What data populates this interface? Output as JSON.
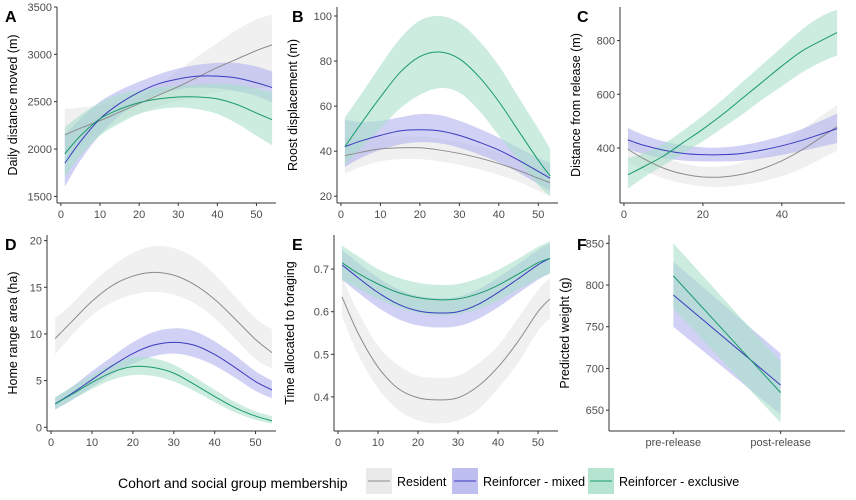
{
  "colors": {
    "resident": {
      "line": "#8c8c8c",
      "band": "#e6e6e6"
    },
    "mixed": {
      "line": "#3b3bbf",
      "band": "#b3b3ef"
    },
    "exclusive": {
      "line": "#1a9a6b",
      "band": "#a8dfc8"
    }
  },
  "legend": {
    "title": "Cohort and social group membership",
    "items": [
      {
        "key": "resident",
        "label": "Resident"
      },
      {
        "key": "mixed",
        "label": "Reinforcer - mixed"
      },
      {
        "key": "exclusive",
        "label": "Reinforcer - exclusive"
      }
    ]
  },
  "chart_data": [
    {
      "id": "A",
      "letter": "A",
      "type": "line",
      "ylabel": "Daily distance moved (m)",
      "xlim": [
        -1,
        55
      ],
      "ylim": [
        1430,
        3500
      ],
      "xticks": [
        0,
        10,
        20,
        30,
        40,
        50
      ],
      "yticks": [
        1500,
        2000,
        2500,
        3000,
        3500
      ],
      "series": [
        {
          "key": "resident",
          "x": [
            1,
            5,
            10,
            15,
            20,
            25,
            30,
            35,
            40,
            45,
            50,
            54
          ],
          "y": [
            2150,
            2220,
            2300,
            2390,
            2480,
            2570,
            2660,
            2760,
            2860,
            2950,
            3040,
            3100
          ],
          "lo": [
            1900,
            2030,
            2170,
            2290,
            2380,
            2450,
            2510,
            2560,
            2600,
            2620,
            2640,
            2650
          ],
          "hi": [
            2420,
            2440,
            2460,
            2490,
            2550,
            2680,
            2830,
            2980,
            3120,
            3260,
            3370,
            3420
          ]
        },
        {
          "key": "mixed",
          "x": [
            1,
            5,
            10,
            15,
            20,
            25,
            30,
            35,
            40,
            45,
            50,
            54
          ],
          "y": [
            1850,
            2080,
            2320,
            2480,
            2600,
            2690,
            2740,
            2770,
            2770,
            2750,
            2700,
            2650
          ],
          "lo": [
            1600,
            1880,
            2150,
            2350,
            2490,
            2580,
            2630,
            2650,
            2640,
            2610,
            2560,
            2490
          ],
          "hi": [
            2150,
            2320,
            2500,
            2620,
            2710,
            2790,
            2850,
            2890,
            2910,
            2910,
            2870,
            2820
          ]
        },
        {
          "key": "exclusive",
          "x": [
            1,
            5,
            10,
            15,
            20,
            25,
            30,
            35,
            40,
            45,
            50,
            54
          ],
          "y": [
            1950,
            2140,
            2320,
            2420,
            2490,
            2530,
            2550,
            2550,
            2530,
            2470,
            2380,
            2310
          ],
          "lo": [
            1700,
            1930,
            2140,
            2270,
            2370,
            2420,
            2440,
            2420,
            2370,
            2270,
            2140,
            2040
          ],
          "hi": [
            2230,
            2360,
            2490,
            2580,
            2620,
            2650,
            2670,
            2680,
            2690,
            2680,
            2640,
            2600
          ]
        }
      ]
    },
    {
      "id": "B",
      "letter": "B",
      "type": "line",
      "ylabel": "Roost displacement (m)",
      "xlim": [
        -1,
        55
      ],
      "ylim": [
        17,
        104
      ],
      "xticks": [
        0,
        10,
        20,
        30,
        40,
        50
      ],
      "yticks": [
        20,
        40,
        60,
        80,
        100
      ],
      "series": [
        {
          "key": "resident",
          "x": [
            1,
            5,
            10,
            15,
            20,
            25,
            30,
            35,
            40,
            45,
            50,
            53
          ],
          "y": [
            38,
            39.5,
            41,
            41.5,
            41.5,
            40.5,
            39,
            37,
            34.5,
            31.5,
            28,
            26
          ],
          "lo": [
            30,
            33,
            35.5,
            36.5,
            36.5,
            35.5,
            34,
            32,
            29.5,
            26.5,
            22.5,
            20
          ],
          "hi": [
            46,
            46,
            46.5,
            46.5,
            46.5,
            45.5,
            44,
            42,
            39.5,
            36.5,
            33.5,
            32
          ]
        },
        {
          "key": "mixed",
          "x": [
            1,
            5,
            10,
            15,
            20,
            25,
            30,
            35,
            40,
            45,
            50,
            53
          ],
          "y": [
            42,
            44.5,
            47,
            49,
            49.5,
            49,
            47,
            44,
            40.5,
            36,
            31,
            28
          ],
          "lo": [
            33,
            37,
            40.5,
            43,
            44,
            43.5,
            41.5,
            38.5,
            35,
            30.5,
            25.5,
            22.5
          ],
          "hi": [
            54,
            53,
            53.5,
            55,
            56.5,
            56,
            53.5,
            50,
            46,
            41.5,
            37,
            35
          ]
        },
        {
          "key": "exclusive",
          "x": [
            1,
            5,
            10,
            15,
            20,
            25,
            30,
            35,
            40,
            45,
            50,
            53
          ],
          "y": [
            42,
            52,
            64,
            75,
            82,
            84,
            81,
            73,
            62,
            49,
            36,
            29
          ],
          "lo": [
            34,
            41,
            50,
            59,
            65,
            68,
            66,
            58,
            47,
            36,
            25,
            20
          ],
          "hi": [
            55,
            65,
            78,
            90,
            98,
            100,
            97,
            89,
            78,
            64,
            50,
            41
          ]
        }
      ]
    },
    {
      "id": "C",
      "letter": "C",
      "type": "line",
      "ylabel": "Distance from release (m)",
      "xlim": [
        -1,
        56
      ],
      "ylim": [
        195,
        925
      ],
      "xticks": [
        0,
        20,
        40
      ],
      "yticks": [
        400,
        600,
        800
      ],
      "series": [
        {
          "key": "resident",
          "x": [
            1,
            5,
            10,
            15,
            20,
            25,
            30,
            35,
            40,
            45,
            50,
            54
          ],
          "y": [
            395,
            360,
            325,
            303,
            292,
            292,
            302,
            322,
            352,
            392,
            440,
            480
          ],
          "lo": [
            350,
            318,
            287,
            268,
            257,
            255,
            262,
            275,
            295,
            323,
            360,
            390
          ],
          "hi": [
            445,
            405,
            368,
            342,
            330,
            332,
            346,
            372,
            410,
            465,
            520,
            560
          ]
        },
        {
          "key": "mixed",
          "x": [
            1,
            5,
            10,
            15,
            20,
            25,
            30,
            35,
            40,
            45,
            50,
            54
          ],
          "y": [
            430,
            410,
            392,
            380,
            375,
            375,
            380,
            392,
            408,
            428,
            452,
            472
          ],
          "lo": [
            395,
            378,
            362,
            353,
            350,
            350,
            352,
            362,
            374,
            389,
            405,
            418
          ],
          "hi": [
            475,
            448,
            425,
            410,
            402,
            402,
            410,
            425,
            445,
            470,
            502,
            528
          ]
        },
        {
          "key": "exclusive",
          "x": [
            1,
            5,
            10,
            15,
            20,
            25,
            30,
            35,
            40,
            45,
            50,
            54
          ],
          "y": [
            300,
            330,
            370,
            420,
            470,
            525,
            585,
            645,
            705,
            760,
            800,
            830
          ],
          "lo": [
            248,
            290,
            335,
            380,
            425,
            475,
            525,
            580,
            630,
            680,
            720,
            745
          ],
          "hi": [
            362,
            380,
            415,
            465,
            520,
            580,
            645,
            710,
            775,
            840,
            890,
            915
          ]
        }
      ]
    },
    {
      "id": "D",
      "letter": "D",
      "type": "line",
      "ylabel": "Home range area (ha)",
      "xlim": [
        -1,
        55
      ],
      "ylim": [
        -0.4,
        20.6
      ],
      "xticks": [
        0,
        10,
        20,
        30,
        40,
        50
      ],
      "yticks": [
        0,
        5,
        10,
        15,
        20
      ],
      "series": [
        {
          "key": "resident",
          "x": [
            1,
            5,
            10,
            15,
            20,
            25,
            30,
            35,
            40,
            45,
            50,
            54
          ],
          "y": [
            9.5,
            11.3,
            13.5,
            15.2,
            16.2,
            16.6,
            16.3,
            15.3,
            13.7,
            11.6,
            9.4,
            8
          ],
          "lo": [
            7.8,
            9.8,
            12,
            13.4,
            14.2,
            14.5,
            14.2,
            13.3,
            11.7,
            9.5,
            7.3,
            6.3
          ],
          "hi": [
            11.7,
            13.2,
            15.4,
            17.3,
            18.7,
            19.4,
            19.2,
            18.2,
            16.4,
            14,
            11.7,
            10.5
          ]
        },
        {
          "key": "mixed",
          "x": [
            1,
            5,
            10,
            15,
            20,
            25,
            30,
            35,
            40,
            45,
            50,
            54
          ],
          "y": [
            2.5,
            3.6,
            5.1,
            6.6,
            7.9,
            8.8,
            9.1,
            8.8,
            7.8,
            6.4,
            4.9,
            4
          ],
          "lo": [
            1.9,
            2.9,
            4.3,
            5.7,
            6.8,
            7.6,
            7.9,
            7.5,
            6.6,
            5.3,
            3.9,
            3.1
          ],
          "hi": [
            3.2,
            4.3,
            6,
            7.6,
            9.1,
            10.2,
            10.6,
            10.3,
            9.2,
            7.7,
            6,
            5
          ]
        },
        {
          "key": "exclusive",
          "x": [
            1,
            5,
            10,
            15,
            20,
            25,
            30,
            35,
            40,
            45,
            50,
            54
          ],
          "y": [
            2.5,
            3.5,
            4.8,
            5.9,
            6.5,
            6.4,
            5.8,
            4.6,
            3.3,
            2.1,
            1.2,
            0.7
          ],
          "lo": [
            1.9,
            2.9,
            4.1,
            5.1,
            5.6,
            5.5,
            4.9,
            3.9,
            2.7,
            1.6,
            0.8,
            0.4
          ],
          "hi": [
            3.2,
            4.3,
            5.6,
            6.8,
            7.5,
            7.4,
            6.7,
            5.4,
            4,
            2.7,
            1.7,
            1.2
          ]
        }
      ]
    },
    {
      "id": "E",
      "letter": "E",
      "type": "line",
      "ylabel": "Time allocated to foraging",
      "xlim": [
        -1,
        55
      ],
      "ylim": [
        0.32,
        0.78
      ],
      "xticks": [
        0,
        10,
        20,
        30,
        40,
        50
      ],
      "yticks": [
        0.4,
        0.5,
        0.6,
        0.7
      ],
      "series": [
        {
          "key": "resident",
          "x": [
            1,
            5,
            10,
            15,
            20,
            25,
            30,
            35,
            40,
            45,
            50,
            53
          ],
          "y": [
            0.635,
            0.55,
            0.47,
            0.42,
            0.398,
            0.393,
            0.398,
            0.425,
            0.47,
            0.53,
            0.6,
            0.63
          ],
          "lo": [
            0.59,
            0.5,
            0.42,
            0.37,
            0.345,
            0.338,
            0.345,
            0.37,
            0.42,
            0.48,
            0.555,
            0.585
          ],
          "hi": [
            0.68,
            0.6,
            0.52,
            0.475,
            0.45,
            0.445,
            0.45,
            0.478,
            0.52,
            0.585,
            0.65,
            0.68
          ]
        },
        {
          "key": "mixed",
          "x": [
            1,
            5,
            10,
            15,
            20,
            25,
            30,
            35,
            40,
            45,
            50,
            53
          ],
          "y": [
            0.71,
            0.68,
            0.645,
            0.618,
            0.602,
            0.597,
            0.6,
            0.617,
            0.645,
            0.677,
            0.71,
            0.725
          ],
          "lo": [
            0.675,
            0.645,
            0.61,
            0.583,
            0.568,
            0.563,
            0.566,
            0.583,
            0.61,
            0.643,
            0.675,
            0.69
          ],
          "hi": [
            0.745,
            0.715,
            0.68,
            0.653,
            0.637,
            0.632,
            0.635,
            0.652,
            0.68,
            0.712,
            0.745,
            0.76
          ]
        },
        {
          "key": "exclusive",
          "x": [
            1,
            5,
            10,
            15,
            20,
            25,
            30,
            35,
            40,
            45,
            50,
            53
          ],
          "y": [
            0.715,
            0.69,
            0.665,
            0.645,
            0.633,
            0.628,
            0.63,
            0.642,
            0.662,
            0.688,
            0.715,
            0.725
          ],
          "lo": [
            0.675,
            0.655,
            0.63,
            0.61,
            0.597,
            0.592,
            0.594,
            0.606,
            0.626,
            0.652,
            0.678,
            0.69
          ],
          "hi": [
            0.755,
            0.73,
            0.7,
            0.68,
            0.668,
            0.663,
            0.665,
            0.678,
            0.698,
            0.724,
            0.752,
            0.765
          ]
        }
      ]
    },
    {
      "id": "F",
      "letter": "F",
      "type": "line",
      "ylabel": "Predicted weight (g)",
      "categories": [
        "pre-release",
        "post-release"
      ],
      "xlim": [
        0.4,
        2.6
      ],
      "ylim": [
        625,
        860
      ],
      "yticks": [
        650,
        700,
        750,
        800,
        850
      ],
      "series": [
        {
          "key": "mixed",
          "x": [
            1,
            2
          ],
          "y": [
            788,
            680
          ],
          "lo": [
            750,
            645
          ],
          "hi": [
            828,
            718
          ]
        },
        {
          "key": "exclusive",
          "x": [
            1,
            2
          ],
          "y": [
            811,
            671
          ],
          "lo": [
            772,
            635
          ],
          "hi": [
            850,
            708
          ]
        }
      ]
    }
  ]
}
